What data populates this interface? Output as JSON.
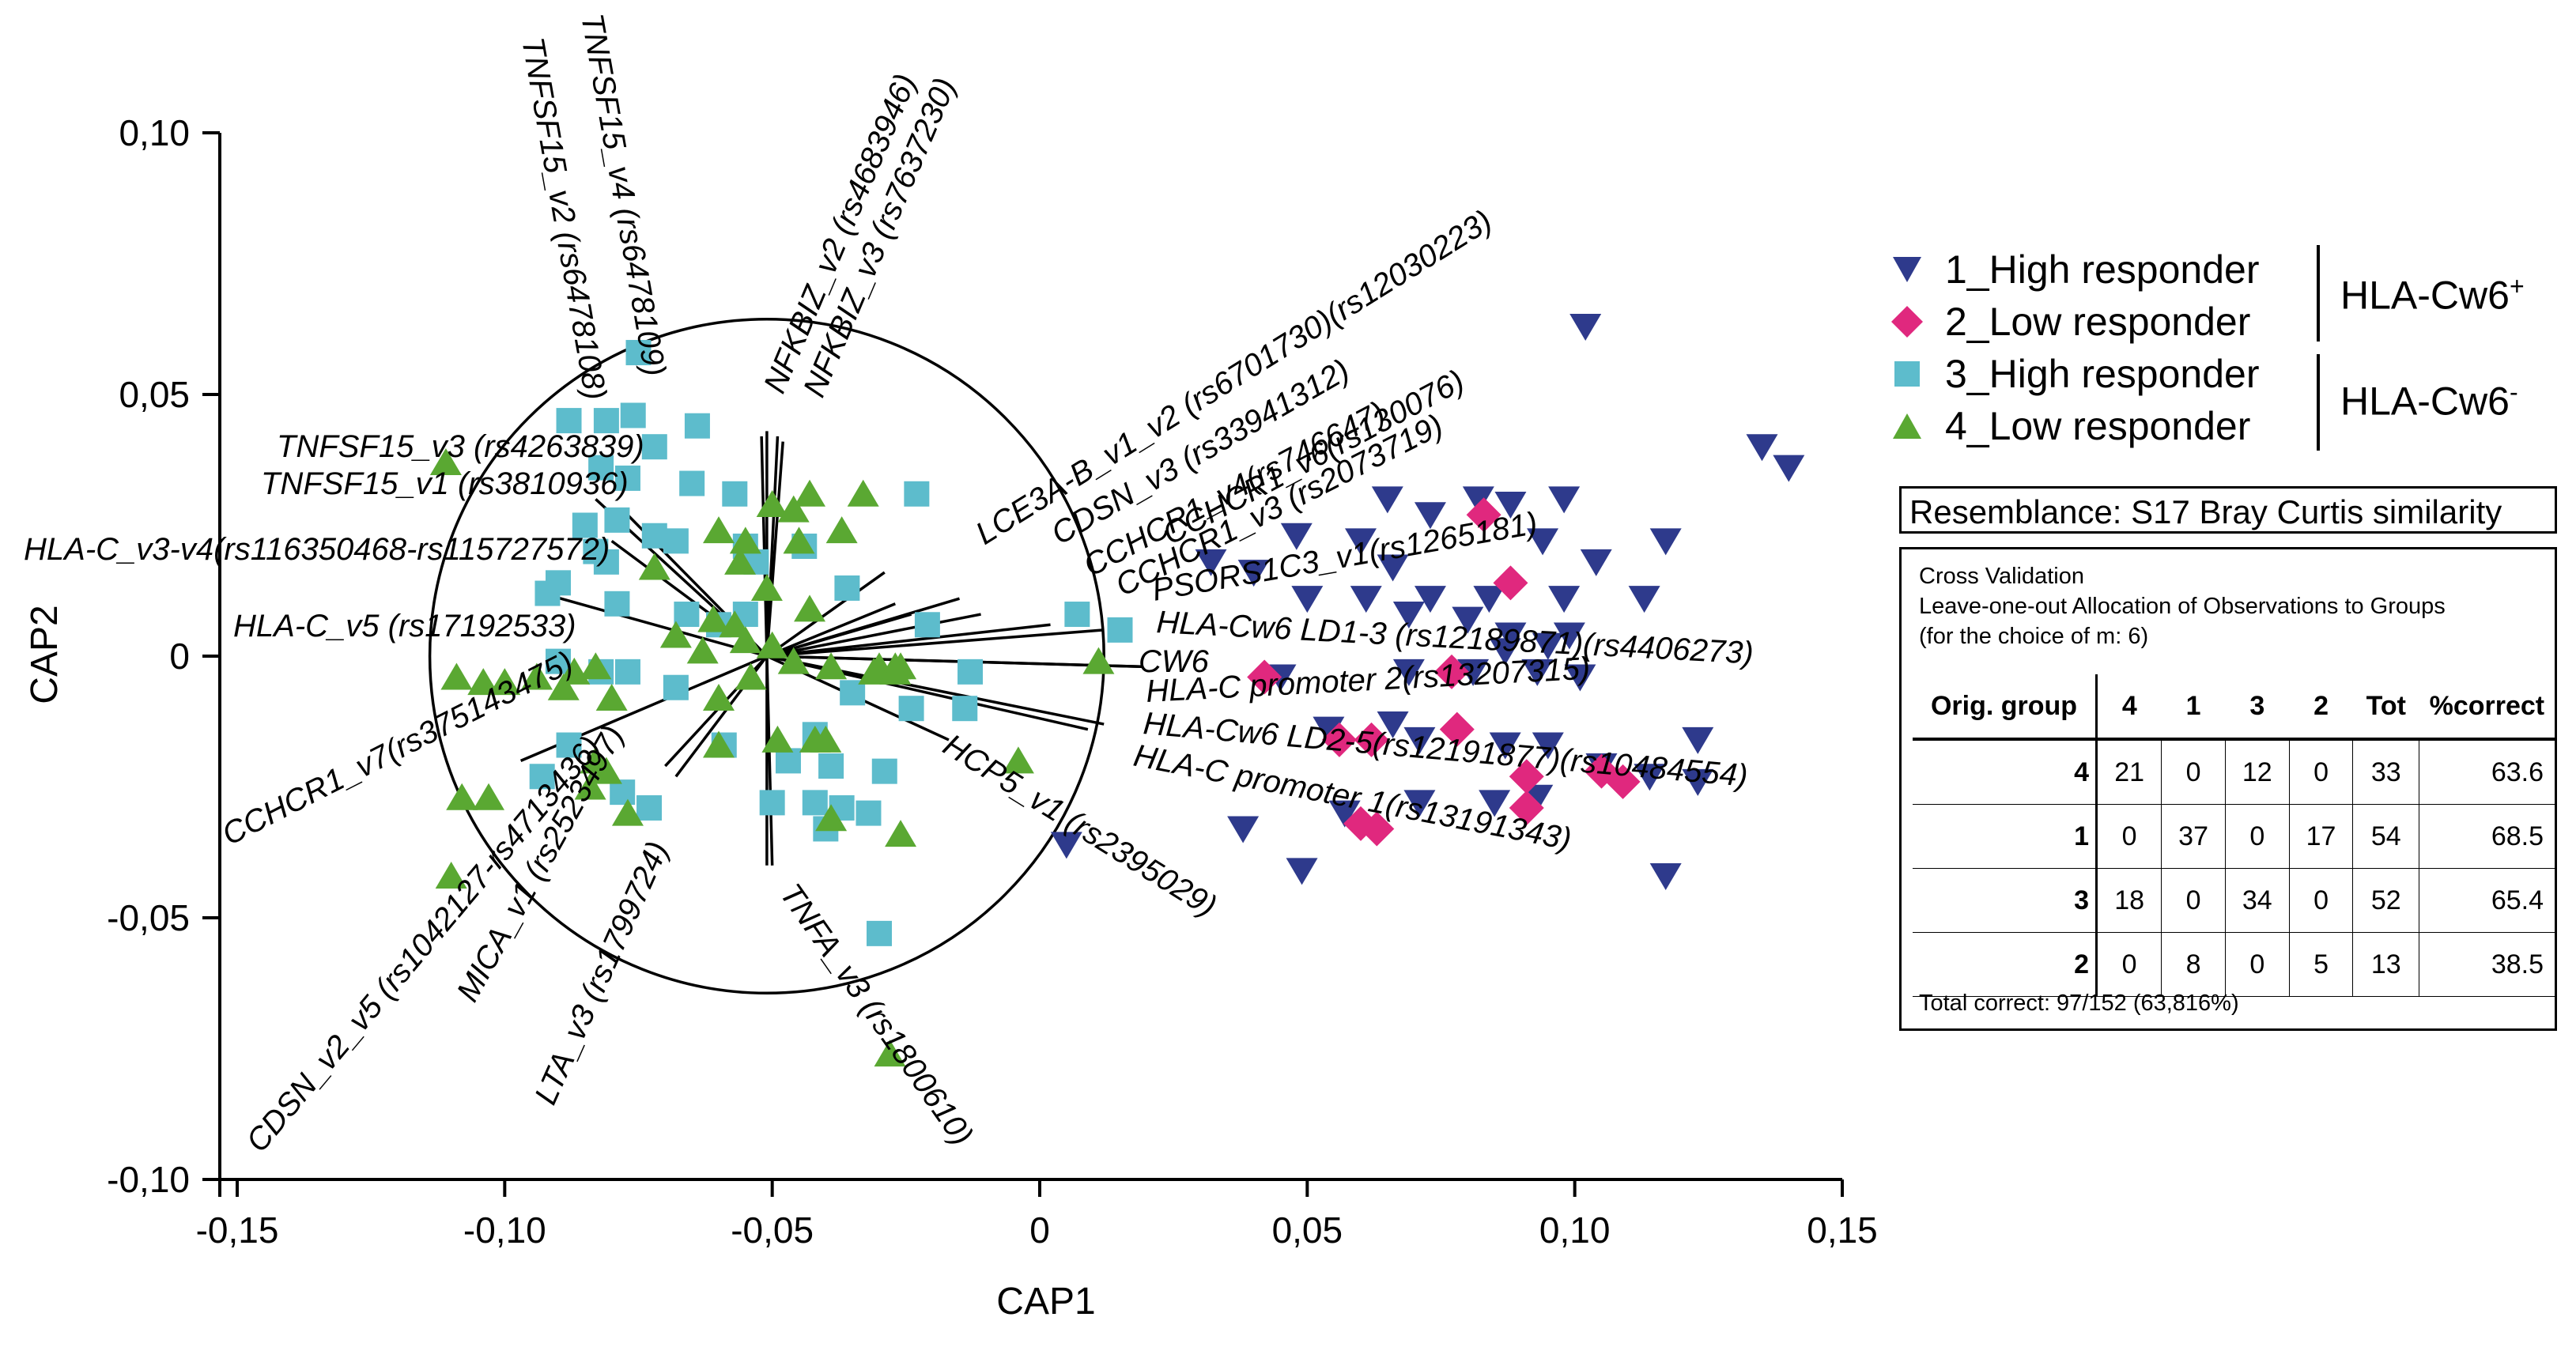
{
  "chart_data": {
    "type": "scatter",
    "xlabel": "CAP1",
    "ylabel": "CAP2",
    "xlim": [
      -0.15,
      0.15
    ],
    "ylim": [
      -0.1,
      0.1
    ],
    "x_ticks": [
      "-0,15",
      "-0,10",
      "-0,05",
      "0",
      "0,05",
      "0,10",
      "0,15"
    ],
    "y_ticks": [
      "-0,10",
      "-0,05",
      "0",
      "0,05",
      "0,10"
    ],
    "x_tick_values": [
      -0.15,
      -0.1,
      -0.05,
      0,
      0.05,
      0.1,
      0.15
    ],
    "y_tick_values": [
      -0.1,
      -0.05,
      0,
      0.05,
      0.1
    ],
    "correlation_circle": {
      "center": [
        -0.051,
        0
      ],
      "radius_cap1": 0.063
    },
    "series": [
      {
        "name": "1_High responder",
        "marker": "triangle-down",
        "color": "#2e3a8c",
        "points": [
          [
            0.102,
            0.063
          ],
          [
            0.135,
            0.04
          ],
          [
            0.14,
            0.036
          ],
          [
            0.065,
            0.03
          ],
          [
            0.082,
            0.03
          ],
          [
            0.088,
            0.029
          ],
          [
            0.098,
            0.03
          ],
          [
            0.073,
            0.027
          ],
          [
            0.048,
            0.023
          ],
          [
            0.06,
            0.022
          ],
          [
            0.094,
            0.022
          ],
          [
            0.117,
            0.022
          ],
          [
            0.104,
            0.018
          ],
          [
            0.032,
            0.018
          ],
          [
            0.066,
            0.017
          ],
          [
            0.04,
            0.016
          ],
          [
            0.05,
            0.011
          ],
          [
            0.061,
            0.011
          ],
          [
            0.073,
            0.011
          ],
          [
            0.084,
            0.011
          ],
          [
            0.098,
            0.011
          ],
          [
            0.113,
            0.011
          ],
          [
            0.069,
            0.008
          ],
          [
            0.08,
            0.007
          ],
          [
            0.088,
            0.004
          ],
          [
            0.095,
            0.002
          ],
          [
            0.099,
            0.004
          ],
          [
            0.087,
            0.001
          ],
          [
            0.045,
            -0.004
          ],
          [
            0.069,
            -0.003
          ],
          [
            0.081,
            -0.003
          ],
          [
            0.093,
            -0.003
          ],
          [
            0.101,
            -0.004
          ],
          [
            0.054,
            -0.014
          ],
          [
            0.066,
            -0.013
          ],
          [
            0.071,
            -0.016
          ],
          [
            0.087,
            -0.017
          ],
          [
            0.095,
            -0.017
          ],
          [
            0.123,
            -0.016
          ],
          [
            0.105,
            -0.021
          ],
          [
            0.114,
            -0.023
          ],
          [
            0.123,
            -0.024
          ],
          [
            0.057,
            -0.03
          ],
          [
            0.071,
            -0.028
          ],
          [
            0.085,
            -0.028
          ],
          [
            0.093,
            -0.027
          ],
          [
            0.005,
            -0.036
          ],
          [
            0.038,
            -0.033
          ],
          [
            0.049,
            -0.041
          ],
          [
            0.117,
            -0.042
          ]
        ]
      },
      {
        "name": "2_Low responder",
        "marker": "diamond",
        "color": "#e0287e",
        "points": [
          [
            0.083,
            0.027
          ],
          [
            0.088,
            0.014
          ],
          [
            0.042,
            -0.004
          ],
          [
            0.077,
            -0.003
          ],
          [
            0.056,
            -0.016
          ],
          [
            0.062,
            -0.016
          ],
          [
            0.078,
            -0.014
          ],
          [
            0.091,
            -0.023
          ],
          [
            0.091,
            -0.029
          ],
          [
            0.109,
            -0.024
          ],
          [
            0.105,
            -0.022
          ],
          [
            0.063,
            -0.033
          ],
          [
            0.06,
            -0.032
          ]
        ]
      },
      {
        "name": "3_High responder",
        "marker": "square",
        "color": "#5dbccc",
        "points": [
          [
            -0.075,
            0.058
          ],
          [
            -0.088,
            0.045
          ],
          [
            -0.081,
            0.045
          ],
          [
            -0.076,
            0.046
          ],
          [
            -0.064,
            0.044
          ],
          [
            -0.072,
            0.04
          ],
          [
            -0.082,
            0.036
          ],
          [
            -0.065,
            0.033
          ],
          [
            -0.077,
            0.034
          ],
          [
            -0.057,
            0.031
          ],
          [
            -0.023,
            0.031
          ],
          [
            -0.079,
            0.026
          ],
          [
            -0.085,
            0.025
          ],
          [
            -0.072,
            0.023
          ],
          [
            -0.068,
            0.022
          ],
          [
            -0.083,
            0.02
          ],
          [
            -0.055,
            0.021
          ],
          [
            -0.044,
            0.021
          ],
          [
            -0.053,
            0.018
          ],
          [
            -0.081,
            0.018
          ],
          [
            -0.09,
            0.014
          ],
          [
            -0.092,
            0.012
          ],
          [
            -0.036,
            0.013
          ],
          [
            -0.079,
            0.01
          ],
          [
            -0.066,
            0.008
          ],
          [
            -0.055,
            0.008
          ],
          [
            -0.06,
            0.006
          ],
          [
            -0.021,
            0.006
          ],
          [
            0.007,
            0.008
          ],
          [
            0.015,
            0.005
          ],
          [
            -0.09,
            -0.001
          ],
          [
            -0.082,
            -0.003
          ],
          [
            -0.077,
            -0.003
          ],
          [
            -0.013,
            -0.003
          ],
          [
            -0.068,
            -0.006
          ],
          [
            -0.035,
            -0.007
          ],
          [
            -0.024,
            -0.01
          ],
          [
            -0.014,
            -0.01
          ],
          [
            -0.042,
            -0.015
          ],
          [
            -0.088,
            -0.017
          ],
          [
            -0.059,
            -0.017
          ],
          [
            -0.047,
            -0.02
          ],
          [
            -0.039,
            -0.021
          ],
          [
            -0.029,
            -0.022
          ],
          [
            -0.093,
            -0.023
          ],
          [
            -0.078,
            -0.026
          ],
          [
            -0.073,
            -0.029
          ],
          [
            -0.05,
            -0.028
          ],
          [
            -0.042,
            -0.028
          ],
          [
            -0.037,
            -0.029
          ],
          [
            -0.032,
            -0.03
          ],
          [
            -0.04,
            -0.033
          ],
          [
            -0.03,
            -0.053
          ]
        ]
      },
      {
        "name": "4_Low responder",
        "marker": "triangle-up",
        "color": "#5aa832",
        "points": [
          [
            -0.111,
            0.037
          ],
          [
            -0.05,
            0.029
          ],
          [
            -0.033,
            0.031
          ],
          [
            -0.043,
            0.031
          ],
          [
            -0.046,
            0.028
          ],
          [
            -0.06,
            0.024
          ],
          [
            -0.055,
            0.022
          ],
          [
            -0.045,
            0.022
          ],
          [
            -0.037,
            0.024
          ],
          [
            -0.056,
            0.018
          ],
          [
            -0.072,
            0.017
          ],
          [
            -0.051,
            0.013
          ],
          [
            -0.043,
            0.009
          ],
          [
            -0.061,
            0.007
          ],
          [
            -0.057,
            0.006
          ],
          [
            -0.068,
            0.004
          ],
          [
            -0.05,
            0.002
          ],
          [
            -0.063,
            0.001
          ],
          [
            -0.055,
            0.003
          ],
          [
            -0.046,
            -0.001
          ],
          [
            -0.03,
            -0.002
          ],
          [
            -0.027,
            -0.002
          ],
          [
            -0.039,
            -0.002
          ],
          [
            -0.026,
            -0.002
          ],
          [
            -0.031,
            -0.003
          ],
          [
            -0.087,
            -0.003
          ],
          [
            -0.083,
            -0.002
          ],
          [
            -0.094,
            -0.004
          ],
          [
            -0.109,
            -0.004
          ],
          [
            -0.104,
            -0.005
          ],
          [
            -0.1,
            -0.005
          ],
          [
            -0.089,
            -0.006
          ],
          [
            -0.08,
            -0.008
          ],
          [
            -0.06,
            -0.008
          ],
          [
            -0.054,
            -0.004
          ],
          [
            0.011,
            -0.001
          ],
          [
            -0.027,
            -0.003
          ],
          [
            -0.049,
            -0.016
          ],
          [
            -0.042,
            -0.016
          ],
          [
            -0.04,
            -0.016
          ],
          [
            -0.06,
            -0.017
          ],
          [
            -0.083,
            -0.02
          ],
          [
            -0.081,
            -0.022
          ],
          [
            -0.084,
            -0.025
          ],
          [
            -0.108,
            -0.027
          ],
          [
            -0.103,
            -0.027
          ],
          [
            -0.077,
            -0.03
          ],
          [
            -0.039,
            -0.031
          ],
          [
            -0.026,
            -0.034
          ],
          [
            -0.11,
            -0.042
          ],
          [
            -0.004,
            -0.02
          ],
          [
            -0.028,
            -0.076
          ]
        ]
      }
    ],
    "vectors": [
      {
        "label": "TNFSF15_v4 (rs6478109)",
        "end": [
          -0.052,
          0.042
        ]
      },
      {
        "label": "TNFSF15_v2 (rs6478108)",
        "end": [
          -0.051,
          0.043
        ]
      },
      {
        "label": "NFKBIZ_v2 (rs4683946)",
        "end": [
          -0.049,
          0.042
        ]
      },
      {
        "label": "NFKBIZ_v3 (rs7637230)",
        "end": [
          -0.048,
          0.041
        ]
      },
      {
        "label": "LCE3A-B_v1_v2 (rs6701730)(rs12030223)",
        "end": [
          -0.029,
          0.016
        ]
      },
      {
        "label": "CDSN_v3 (rs33941312)",
        "end": [
          -0.027,
          0.01
        ]
      },
      {
        "label": "CCHCR1_v4(rs746647)",
        "end": [
          -0.024,
          0.008
        ]
      },
      {
        "label": "CCHCR1_v3 (rs2073719)",
        "end": [
          -0.015,
          0.011
        ]
      },
      {
        "label": "CCHCR1_v6(rs130076)",
        "end": [
          -0.011,
          0.008
        ]
      },
      {
        "label": "PSORS1C3_v1(rs1265181)",
        "end": [
          0.002,
          0.006
        ]
      },
      {
        "label": "HLA-Cw6 LD1-3 (rs12189871)(rs4406273)",
        "end": [
          0.012,
          0.005
        ]
      },
      {
        "label": "CW6",
        "end": [
          0.019,
          -0.002
        ]
      },
      {
        "label": "HLA-C promoter 2(rs13207315)",
        "end": [
          0.019,
          -0.002
        ]
      },
      {
        "label": "HLA-Cw6 LD2-5(rs12191877)(rs10484554)",
        "end": [
          0.012,
          -0.013
        ]
      },
      {
        "label": "HLA-C promoter 1(rs13191343)",
        "end": [
          0.009,
          -0.014
        ]
      },
      {
        "label": "HCP5_v1 (rs2395029)",
        "end": [
          -0.017,
          -0.016
        ]
      },
      {
        "label": "TNFA_v3 (rs1800610)",
        "end": [
          -0.05,
          -0.04
        ]
      },
      {
        "label": "LTA_v3 (rs1799724)",
        "end": [
          -0.051,
          -0.04
        ]
      },
      {
        "label": "MICA_v1 (rs2523497)",
        "end": [
          -0.068,
          -0.023
        ]
      },
      {
        "label": "CDSN_v2_v5 (rs1042127-rs4713436)",
        "end": [
          -0.07,
          -0.021
        ]
      },
      {
        "label": "CCHCR1_v7(rs375143475)",
        "end": [
          -0.097,
          -0.02
        ]
      },
      {
        "label": "HLA-C_v5 (rs17192533)",
        "end": [
          -0.093,
          0.012
        ]
      },
      {
        "label": "HLA-C_v3-v4(rs116350468-rs115727572)",
        "end": [
          -0.08,
          0.022
        ]
      },
      {
        "label": "TNFSF15_v1 (rs3810936)",
        "end": [
          -0.078,
          0.028
        ]
      },
      {
        "label": "TNFSF15_v3 (rs4263839)",
        "end": [
          -0.083,
          0.03
        ]
      }
    ]
  },
  "vector_labels": {
    "tnfsf15_v4": "TNFSF15_v4 (rs6478109)",
    "tnfsf15_v2": "TNFSF15_v2 (rs6478108)",
    "nfkbiz_v2": "NFKBIZ_v2 (rs4683946)",
    "nfkbiz_v3": "NFKBIZ_v3 (rs7637230)",
    "lce3ab": "LCE3A-B_v1_v2 (rs6701730)(rs12030223)",
    "cdsn_v3": "CDSN_v3 (rs33941312)",
    "cchcr1_v4": "CCHCR1_v4(rs746647)",
    "cchcr1_v3": "CCHCR1_v3 (rs2073719)",
    "cchcr1_v6": "CCHCR1_v6(rs130076)",
    "psors1c3": "PSORS1C3_v1(rs1265181)",
    "hla_cw6_ld13": "HLA-Cw6 LD1-3 (rs12189871)(rs4406273)",
    "cw6": "CW6",
    "hla_c_prom2": "HLA-C promoter 2(rs13207315)",
    "hla_cw6_ld25": "HLA-Cw6 LD2-5(rs12191877)(rs10484554)",
    "hla_c_prom1": "HLA-C promoter 1(rs13191343)",
    "hcp5": "HCP5_v1 (rs2395029)",
    "tnfa_v3": "TNFA_v3 (rs1800610)",
    "lta_v3": "LTA_v3 (rs1799724)",
    "mica_v1": "MICA_v1 (rs2523497)",
    "cdsn_v2_v5": "CDSN_v2_v5 (rs1042127-rs4713436)",
    "cchcr1_v7": "CCHCR1_v7(rs375143475)",
    "hla_c_v5": "HLA-C_v5 (rs17192533)",
    "hla_c_v3v4": "HLA-C_v3-v4(rs116350468-rs115727572)",
    "tnfsf15_v1": "TNFSF15_v1 (rs3810936)",
    "tnfsf15_v3": "TNFSF15_v3 (rs4263839)"
  },
  "legend": {
    "items": [
      {
        "label": "1_High responder",
        "color": "#2e3a8c",
        "marker": "triangle-down"
      },
      {
        "label": "2_Low responder",
        "color": "#e0287e",
        "marker": "diamond"
      },
      {
        "label": "3_High responder",
        "color": "#5dbccc",
        "marker": "square"
      },
      {
        "label": "4_Low responder",
        "color": "#5aa832",
        "marker": "triangle-up"
      }
    ],
    "group_pos": "HLA-Cw6",
    "group_pos_sup": "+",
    "group_neg": "HLA-Cw6",
    "group_neg_sup": "-"
  },
  "resemblance": "Resemblance: S17 Bray Curtis similarity",
  "cross_validation": {
    "title": "Cross Validation",
    "subtitle": "Leave-one-out Allocation of Observations to Groups",
    "note": "(for the choice of m: 6)",
    "headers": [
      "Orig. group",
      "4",
      "1",
      "3",
      "2",
      "Tot",
      "%correct"
    ],
    "rows": [
      [
        "4",
        "21",
        "0",
        "12",
        "0",
        "33",
        "63.6"
      ],
      [
        "1",
        "0",
        "37",
        "0",
        "17",
        "54",
        "68.5"
      ],
      [
        "3",
        "18",
        "0",
        "34",
        "0",
        "52",
        "65.4"
      ],
      [
        "2",
        "0",
        "8",
        "0",
        "5",
        "13",
        "38.5"
      ]
    ],
    "total": "Total correct: 97/152 (63,816%)"
  }
}
